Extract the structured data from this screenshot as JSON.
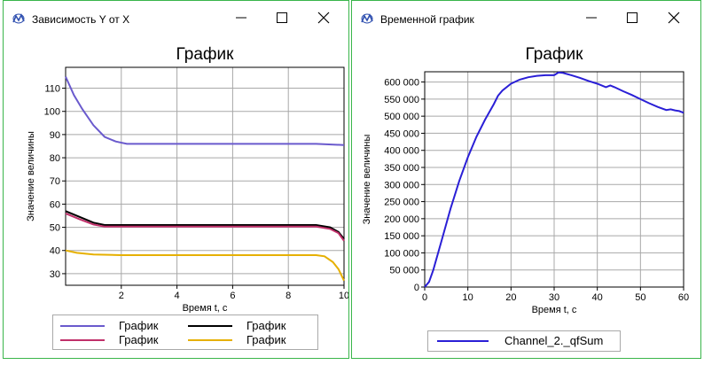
{
  "windows": [
    {
      "title": "Зависимость Y от X",
      "chart_data": {
        "type": "line",
        "title": "График",
        "xlabel": "Время t, с",
        "ylabel": "Значение величины",
        "xlim": [
          0,
          10
        ],
        "ylim": [
          25,
          119
        ],
        "xticks": [
          2,
          4,
          6,
          8,
          10
        ],
        "yticks": [
          30,
          40,
          50,
          60,
          70,
          80,
          90,
          100,
          110
        ],
        "grid": true,
        "legend": "bottom",
        "series": [
          {
            "name": "График",
            "color": "#6a5acd",
            "x": [
              0,
              0.3,
              0.6,
              1.0,
              1.4,
              1.8,
              2.2,
              3,
              5,
              7,
              9,
              10
            ],
            "y": [
              115,
              107,
              101,
              94,
              89,
              87,
              86,
              86,
              86,
              86,
              86,
              85.5
            ]
          },
          {
            "name": "График",
            "color": "#000000",
            "x": [
              0,
              0.5,
              1.0,
              1.4,
              2,
              4,
              6,
              8,
              9,
              9.5,
              9.8,
              10
            ],
            "y": [
              57,
              54.5,
              52,
              51,
              51,
              51,
              51,
              51,
              51,
              50,
              48,
              45
            ]
          },
          {
            "name": "График",
            "color": "#c0306a",
            "x": [
              0,
              0.5,
              1.0,
              1.4,
              2,
              4,
              6,
              8,
              9,
              9.5,
              9.8,
              10
            ],
            "y": [
              56,
              53.5,
              51.2,
              50.3,
              50.3,
              50.3,
              50.3,
              50.3,
              50.3,
              49.3,
              47.5,
              44.2
            ]
          },
          {
            "name": "График",
            "color": "#e6b000",
            "x": [
              0,
              0.4,
              1.0,
              2,
              4,
              6,
              8,
              9,
              9.3,
              9.6,
              9.8,
              10
            ],
            "y": [
              40,
              39,
              38.3,
              38,
              38,
              38,
              38,
              38,
              37.5,
              35,
              32,
              27
            ]
          }
        ]
      }
    },
    {
      "title": "Временной график",
      "chart_data": {
        "type": "line",
        "title": "График",
        "xlabel": "Время t, с",
        "ylabel": "Значение величины",
        "xlim": [
          0,
          60
        ],
        "ylim": [
          0,
          630000
        ],
        "xticks": [
          0,
          10,
          20,
          30,
          40,
          50,
          60
        ],
        "xtick_labels": [
          "0",
          "10",
          "20",
          "30",
          "40",
          "50",
          "60"
        ],
        "yticks": [
          0,
          50000,
          100000,
          150000,
          200000,
          250000,
          300000,
          350000,
          400000,
          450000,
          500000,
          550000,
          600000
        ],
        "ytick_labels": [
          "0",
          "50 000",
          "100 000",
          "150 000",
          "200 000",
          "250 000",
          "300 000",
          "350 000",
          "400 000",
          "450 000",
          "500 000",
          "550 000",
          "600 000"
        ],
        "grid": true,
        "legend": "bottom",
        "series": [
          {
            "name": "Channel_2._qfSum",
            "color": "#2a1fd6",
            "x": [
              0,
              1,
              2,
              4,
              6,
              8,
              10,
              12,
              14,
              16,
              17,
              18,
              20,
              22,
              24,
              26,
              28,
              30,
              31,
              32,
              34,
              36,
              38,
              40,
              42,
              43,
              44,
              46,
              48,
              50,
              52,
              54,
              56,
              57,
              58,
              59,
              60
            ],
            "y": [
              0,
              15000,
              50000,
              140000,
              230000,
              310000,
              380000,
              440000,
              490000,
              535000,
              560000,
              575000,
              595000,
              607000,
              614000,
              618000,
              620000,
              620000,
              628000,
              627000,
              620000,
              612000,
              603000,
              595000,
              585000,
              590000,
              585000,
              573000,
              562000,
              550000,
              538000,
              527000,
              518000,
              520000,
              517000,
              515000,
              510000
            ]
          }
        ]
      }
    }
  ]
}
